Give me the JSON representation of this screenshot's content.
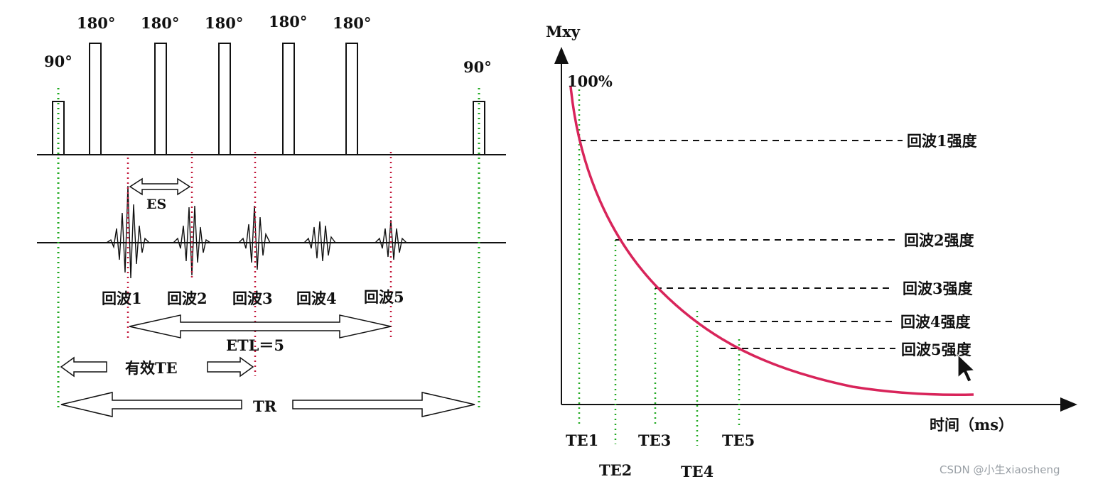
{
  "left_diagram": {
    "pulse_90_left_label": "90°",
    "pulse_90_right_label": "90°",
    "pulse_180_labels": [
      "180°",
      "180°",
      "180°",
      "180°",
      "180°"
    ],
    "es_label": "ES",
    "echo_labels": [
      "回波1",
      "回波2",
      "回波3",
      "回波4",
      "回波5"
    ],
    "etl_label": "ETL＝5",
    "effective_te_label": "有效TE",
    "tr_label": "TR"
  },
  "right_chart": {
    "y_axis_label": "Mxy",
    "x_axis_label": "时间（ms）",
    "max_label": "100%",
    "te_labels": [
      "TE1",
      "TE2",
      "TE3",
      "TE4",
      "TE5"
    ],
    "intensity_labels": [
      "回波1强度",
      "回波2强度",
      "回波3强度",
      "回波4强度",
      "回波5强度"
    ],
    "curve_color": "#d8245a",
    "guide_color": "#22aa22"
  },
  "watermark": "CSDN @小生xiaosheng"
}
